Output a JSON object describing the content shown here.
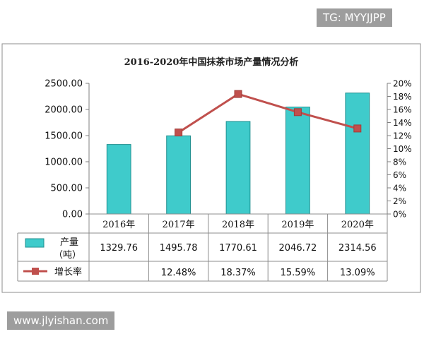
{
  "chart_data": {
    "type": "bar",
    "title": "2016-2020年中国抹茶市场产量情况分析",
    "categories": [
      "2016年",
      "2017年",
      "2018年",
      "2019年",
      "2020年"
    ],
    "series": [
      {
        "name": "产量（吨）",
        "type": "bar",
        "axis": "left",
        "color": "#3fcbcb",
        "values": [
          1329.76,
          1495.78,
          1770.61,
          2046.72,
          2314.56
        ],
        "labels": [
          "1329.76",
          "1495.78",
          "1770.61",
          "2046.72",
          "2314.56"
        ]
      },
      {
        "name": "增长率",
        "type": "line",
        "axis": "right",
        "color": "#c0504d",
        "x": [
          "2017年",
          "2018年",
          "2019年",
          "2020年"
        ],
        "values": [
          12.48,
          18.37,
          15.59,
          13.09
        ],
        "labels": [
          "",
          "12.48%",
          "18.37%",
          "15.59%",
          "13.09%"
        ]
      }
    ],
    "y_left": {
      "lim": [
        0,
        2500
      ],
      "ticks": [
        0,
        500,
        1000,
        1500,
        2000,
        2500
      ],
      "tick_labels": [
        "0.00",
        "500.00",
        "1000.00",
        "1500.00",
        "2000.00",
        "2500.00"
      ]
    },
    "y_right": {
      "lim": [
        0,
        20
      ],
      "ticks": [
        0,
        2,
        4,
        6,
        8,
        10,
        12,
        14,
        16,
        18,
        20
      ],
      "tick_labels": [
        "0%",
        "2%",
        "4%",
        "6%",
        "8%",
        "10%",
        "12%",
        "14%",
        "16%",
        "18%",
        "20%"
      ]
    },
    "grid": false,
    "legend": "data-table",
    "data_table": true,
    "legend_labels": {
      "bar_line1": "产量",
      "bar_line2": "（吨）",
      "line": "增长率"
    }
  },
  "watermarks": {
    "top": "TG: MYYJJPP",
    "bottom": "www.jlyishan.com"
  }
}
